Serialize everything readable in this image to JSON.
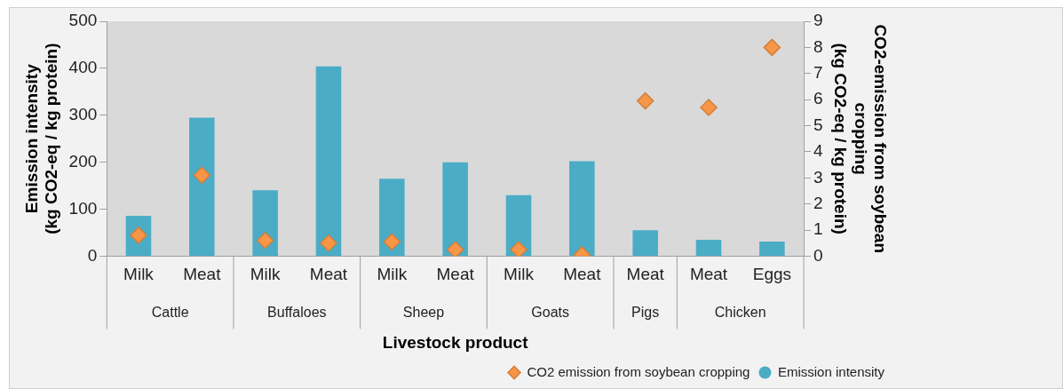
{
  "chart_data": {
    "type": "bar",
    "categories": [
      "Milk",
      "Meat",
      "Milk",
      "Meat",
      "Milk",
      "Meat",
      "Milk",
      "Meat",
      "Meat",
      "Meat",
      "Eggs"
    ],
    "xlabel": "Livestock product",
    "ylabel": "Emission intensity\n(kg CO2-eq / kg protein)",
    "y2label": "CO2-emission from soybean\ncropping\n(kg CO2-eq / kg protein)",
    "series": [
      {
        "name": "Emission intensity",
        "color": "#4bacc6",
        "values": [
          86,
          295,
          140,
          404,
          165,
          200,
          130,
          202,
          55,
          35,
          31
        ]
      },
      {
        "name": "CO2 emission from soybean cropping",
        "type": "scatter",
        "axis": "y2",
        "color": "#f79646",
        "marker": "diamond",
        "values": [
          0.8,
          3.1,
          0.6,
          0.5,
          0.55,
          0.25,
          0.25,
          0.05,
          5.95,
          5.7,
          8.0
        ]
      }
    ],
    "ylim": [
      0,
      500
    ],
    "yticks": [
      0,
      100,
      200,
      300,
      400,
      500
    ],
    "y2lim": [
      0,
      9
    ],
    "y2ticks": [
      0,
      1,
      2,
      3,
      4,
      5,
      6,
      7,
      8,
      9
    ],
    "annotations": [
      "Cattle",
      "Buffaloes",
      "Sheep",
      "Goats",
      "Pigs",
      "Chicken"
    ],
    "grid": false,
    "legend": "bottom right"
  }
}
